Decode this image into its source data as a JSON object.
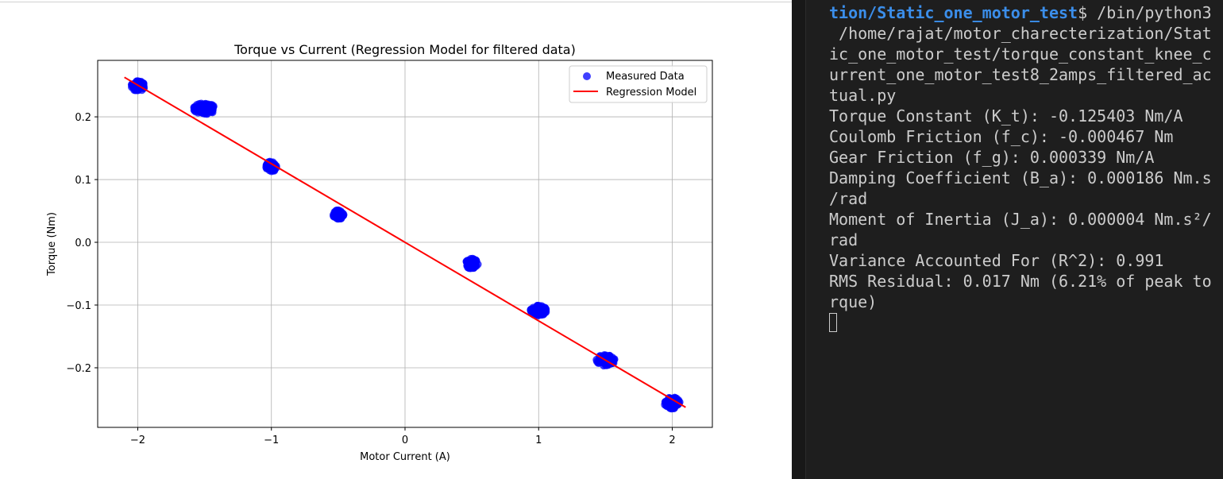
{
  "colors": {
    "scatter": "#0000ff",
    "regression": "#ff0000",
    "grid": "#b0b0b0",
    "terminal_bg": "#1e1e1e",
    "terminal_text": "#cccccc",
    "terminal_path": "#3b8eea"
  },
  "chart_data": {
    "type": "scatter",
    "title": "Torque vs Current (Regression Model for filtered data)",
    "xlabel": "Motor Current (A)",
    "ylabel": "Torque (Nm)",
    "xlim": [
      -2.3,
      2.3
    ],
    "ylim": [
      -0.295,
      0.29
    ],
    "x_ticks": [
      -2,
      -1,
      0,
      1,
      2
    ],
    "x_tick_labels": [
      "−2",
      "−1",
      "0",
      "1",
      "2"
    ],
    "y_ticks": [
      -0.2,
      -0.1,
      0.0,
      0.1,
      0.2
    ],
    "y_tick_labels": [
      "−0.2",
      "−0.1",
      "0.0",
      "0.1",
      "0.2"
    ],
    "grid": true,
    "legend_position": "top-right",
    "series": [
      {
        "name": "Measured Data",
        "kind": "scatter",
        "clusters": [
          {
            "x": -2.0,
            "y": 0.249,
            "spread_x": 0.05,
            "spread_y": 0.008
          },
          {
            "x": -1.5,
            "y": 0.213,
            "spread_x": 0.08,
            "spread_y": 0.009
          },
          {
            "x": -1.0,
            "y": 0.121,
            "spread_x": 0.04,
            "spread_y": 0.008
          },
          {
            "x": -0.5,
            "y": 0.044,
            "spread_x": 0.04,
            "spread_y": 0.007
          },
          {
            "x": 0.5,
            "y": -0.034,
            "spread_x": 0.045,
            "spread_y": 0.008
          },
          {
            "x": 1.0,
            "y": -0.109,
            "spread_x": 0.06,
            "spread_y": 0.008
          },
          {
            "x": 1.5,
            "y": -0.188,
            "spread_x": 0.07,
            "spread_y": 0.009
          },
          {
            "x": 2.0,
            "y": -0.256,
            "spread_x": 0.06,
            "spread_y": 0.009
          }
        ]
      },
      {
        "name": "Regression Model",
        "kind": "line",
        "x": [
          -2.1,
          2.1
        ],
        "y": [
          0.263,
          -0.263
        ]
      }
    ]
  },
  "terminal": {
    "prompt_path": "tion/Static_one_motor_test",
    "prompt_suffix": "$ /bin/python3",
    "lines": [
      " /home/rajat/motor_charecterization/Stat",
      "ic_one_motor_test/torque_constant_knee_c",
      "urrent_one_motor_test8_2amps_filtered_ac",
      "tual.py",
      "Torque Constant (K_t): -0.125403 Nm/A",
      "Coulomb Friction (f_c): -0.000467 Nm",
      "Gear Friction (f_g): 0.000339 Nm/A",
      "Damping Coefficient (B_a): 0.000186 Nm.s",
      "/rad",
      "Moment of Inertia (J_a): 0.000004 Nm.s²/",
      "rad",
      "Variance Accounted For (R^2): 0.991",
      "RMS Residual: 0.017 Nm (6.21% of peak to",
      "rque)"
    ]
  }
}
